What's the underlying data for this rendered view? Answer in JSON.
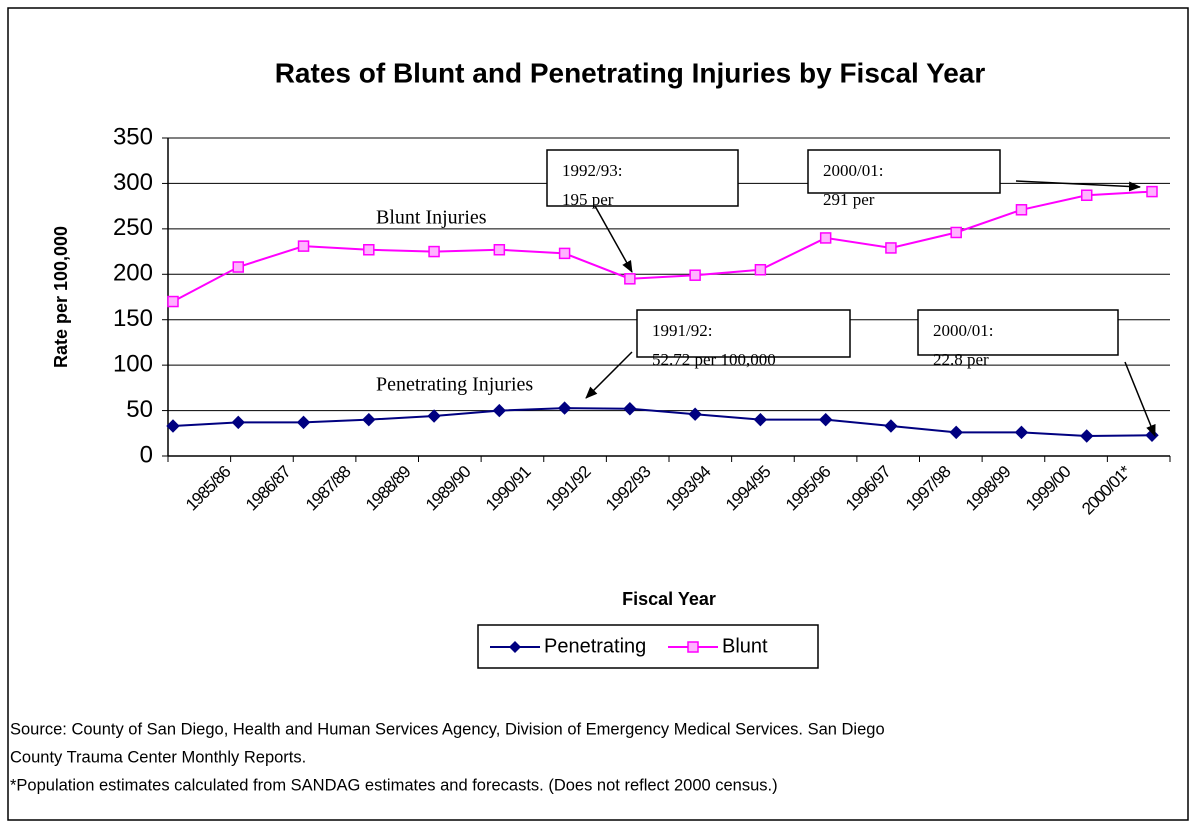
{
  "chart_data": {
    "type": "line",
    "title": "Rates of Blunt and Penetrating Injuries by Fiscal Year",
    "x_label": "Fiscal Year",
    "y_label": "Rate per 100,000",
    "categories": [
      "1985/86",
      "1986/87",
      "1987/88",
      "1988/89",
      "1989/90",
      "1990/91",
      "1991/92",
      "1992/93",
      "1993/94",
      "1994/95",
      "1995/96",
      "1996/97",
      "1997/98",
      "1998/99",
      "1999/00",
      "2000/01*"
    ],
    "series": [
      {
        "name": "Penetrating",
        "color": "#000080",
        "marker": "diamond",
        "values": [
          33,
          37,
          37,
          40,
          44,
          50,
          52.72,
          52,
          46,
          40,
          40,
          33,
          26,
          26,
          22,
          22.8
        ]
      },
      {
        "name": "Blunt",
        "color": "#ff00ff",
        "marker": "square",
        "values": [
          170,
          208,
          231,
          227,
          225,
          227,
          223,
          195,
          199,
          205,
          240,
          229,
          246,
          271,
          287,
          291
        ]
      }
    ],
    "ylim": [
      0,
      350
    ],
    "yticks": [
      0,
      50,
      100,
      150,
      200,
      250,
      300,
      350
    ],
    "grid": true,
    "legend": "bottom",
    "series_labels": [
      "Blunt Injuries",
      "Penetrating Injuries"
    ],
    "annotations": [
      {
        "lines": [
          "1992/93:",
          "195 per"
        ]
      },
      {
        "lines": [
          "2000/01:",
          "291 per"
        ]
      },
      {
        "lines": [
          "1991/92:",
          "52.72 per 100,000"
        ]
      },
      {
        "lines": [
          "2000/01:",
          "22.8 per"
        ]
      }
    ],
    "notes": [
      "Source: County of San Diego, Health and Human Services Agency, Division of Emergency Medical Services.  San Diego",
      "County Trauma Center Monthly Reports.",
      "*Population estimates calculated from SANDAG estimates and forecasts. (Does not reflect 2000 census.)"
    ]
  }
}
